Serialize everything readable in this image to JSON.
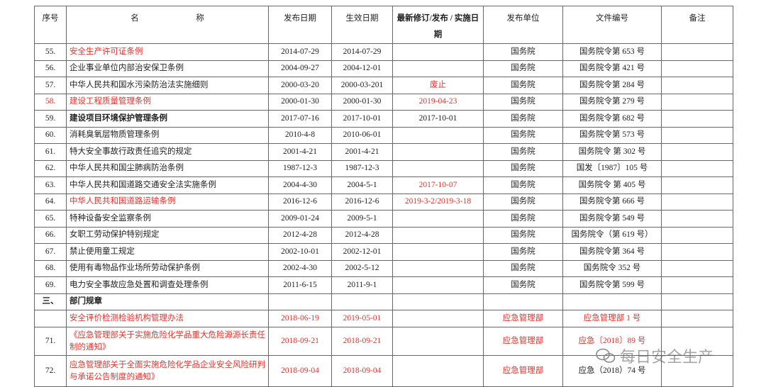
{
  "table": {
    "header": [
      "序号",
      "名　　　　　　　称",
      "发布日期",
      "生效日期",
      "最新修订/发布 / 实施日期",
      "发布单位",
      "文件编号",
      "备注"
    ],
    "rows": [
      [
        "55.",
        "安全生产许可证条例",
        "2014-07-29",
        "2014-07-29",
        null,
        "国务院",
        "国务院令第 653 号",
        null
      ],
      [
        "56.",
        "企业事业单位内部治安保卫条例",
        "2004-09-27",
        "2004-12-01",
        null,
        "国务院",
        "国务院令第 421 号",
        null
      ],
      [
        "57.",
        "中华人民共和国水污染防治法实施细则",
        "2000-03-20",
        "2000-03-201",
        "废止",
        "国务院",
        "国务院令第 284 号",
        null
      ],
      [
        "58.",
        "建设工程质量管理条例",
        "2000-01-30",
        "2000-01-30",
        "2019-04-23",
        "国务院",
        "国务院令第 279 号",
        null
      ],
      [
        "59.",
        "建设项目环境保护管理条例",
        "2017-07-16",
        "2017-10-01",
        "2017-10-01",
        "国务院",
        "国务院令第 682 号",
        null
      ],
      [
        "60.",
        "消耗臭氧层物质管理条例",
        "2010-4-8",
        "2010-06-01",
        null,
        "国务院",
        "国务院令第 573 号",
        null
      ],
      [
        "61.",
        "特大安全事故行政责任追究的规定",
        "2001-4-21",
        "2001-4-21",
        null,
        "国务院",
        "国务院令 第 302 号",
        null
      ],
      [
        "62.",
        "中华人民共和国尘肺病防治条例",
        "1987-12-3",
        "1987-12-3",
        null,
        "国务院",
        "国发〔1987〕105 号",
        null
      ],
      [
        "63.",
        "中华人民共和国道路交通安全法实施条例",
        "2004-4-30",
        "2004-5-1",
        "2017-10-07",
        "国务院",
        "国务院令 第 405 号",
        null
      ],
      [
        "64.",
        "中华人民共和国道路运输条例",
        "2016-12-6",
        "2016-12-6",
        "2019-3-2/2019-3-18",
        "国务院",
        "国务院令第 666 号",
        null
      ],
      [
        "65.",
        "特种设备安全监察条例",
        "2009-01-24",
        "2009-5-1",
        null,
        "国务院",
        "国务院令第 549 号",
        null
      ],
      [
        "66.",
        "女职工劳动保护特别规定",
        "2012-4-28",
        "2012-4-28",
        null,
        "国务院",
        "国务院令（第 619 号）",
        null
      ],
      [
        "67.",
        "禁止使用童工规定",
        "2002-10-01",
        "2002-12-01",
        null,
        "国务院",
        "国务院令第 364 号",
        null
      ],
      [
        "68.",
        "使用有毒物品作业场所劳动保护条例",
        "2002-4-30",
        "2002-5-12",
        null,
        "国务院",
        "国务院令 352 号",
        null
      ],
      [
        "69.",
        "电力安全事故应急处置和调查处理条例",
        "2011-6-15",
        "2011-9-1",
        null,
        "国务院",
        "国务院令第 599 号",
        null
      ],
      [
        "三、",
        "部门规章",
        null,
        null,
        null,
        null,
        null,
        null
      ],
      [
        null,
        "安全评价检测检验机构管理办法",
        "2018-06-19",
        "2019-05-01",
        null,
        "应急管理部",
        "应急管理部 1 号",
        null
      ],
      [
        "71.",
        "《应急管理部关于实施危险化学品重大危险源源长责任制的通知》",
        "2018-09-21",
        "2018-09-21",
        null,
        "应急管理部",
        "应急〔2018〕89 号",
        null
      ],
      [
        "72.",
        "应急管理部关于全面实施危险化学品企业安全风险研判与承诺公告制度的通知》",
        "2018-09-04",
        "2018-09-04",
        null,
        "应急管理部",
        "应急（2018）74 号",
        null
      ]
    ]
  },
  "watermark": "每日安全生产"
}
